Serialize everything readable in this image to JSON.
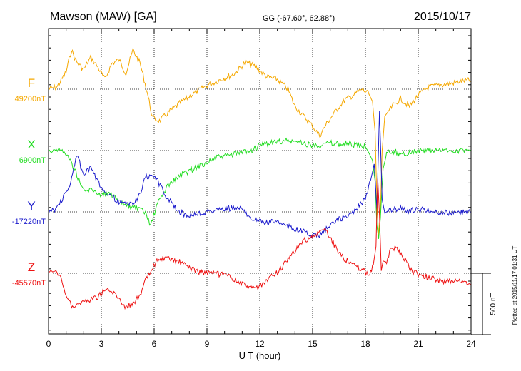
{
  "header": {
    "station": "Mawson (MAW)  [GA]",
    "coords": "GG (-67.60°,  62.88°)",
    "date": "2015/10/17"
  },
  "plotted_note": "Plotted at 2015/11/17 01:31  UT",
  "chart_data": {
    "type": "line",
    "xlabel": "U T (hour)",
    "xlim": [
      0,
      24
    ],
    "x_ticks": [
      "0",
      "3",
      "6",
      "9",
      "12",
      "15",
      "18",
      "21",
      "24"
    ],
    "scale_bar_label": "500 nT",
    "scale_bar_nT": 500,
    "series": [
      {
        "name": "F",
        "baseline_label": "49200nT",
        "baseline_nT": 49200,
        "color": "#f5a800",
        "x": [
          0,
          0.5,
          1,
          1.3,
          1.6,
          2,
          2.4,
          2.8,
          3.2,
          3.6,
          4,
          4.4,
          4.8,
          5.2,
          5.6,
          5.9,
          6.3,
          6.8,
          7.5,
          8.2,
          9,
          9.8,
          10.5,
          11.2,
          11.8,
          12.4,
          13,
          13.6,
          14,
          14.5,
          15,
          15.4,
          15.8,
          16.3,
          16.8,
          17.3,
          17.8,
          18.2,
          18.4,
          18.55,
          18.65,
          18.75,
          18.85,
          18.95,
          19.1,
          19.3,
          19.6,
          20,
          20.5,
          21,
          21.5,
          22,
          22.5,
          23,
          23.5,
          24
        ],
        "values": [
          49200,
          49220,
          49340,
          49520,
          49420,
          49360,
          49460,
          49380,
          49280,
          49410,
          49440,
          49330,
          49520,
          49410,
          49180,
          48970,
          48940,
          49010,
          49090,
          49160,
          49230,
          49280,
          49320,
          49420,
          49380,
          49300,
          49280,
          49200,
          49060,
          48980,
          48900,
          48820,
          48920,
          49020,
          49110,
          49150,
          49200,
          49160,
          49100,
          48850,
          48300,
          48000,
          48200,
          48700,
          48980,
          49020,
          49070,
          49120,
          49060,
          49150,
          49210,
          49230,
          49240,
          49250,
          49270,
          49270
        ]
      },
      {
        "name": "X",
        "baseline_label": "6900nT",
        "baseline_nT": 6900,
        "color": "#22dd22",
        "x": [
          0,
          0.5,
          1,
          1.5,
          2,
          2.5,
          3,
          3.5,
          4,
          4.5,
          5,
          5.5,
          5.8,
          6.2,
          6.8,
          7.5,
          8.5,
          9.5,
          10.5,
          11.5,
          12,
          12.5,
          13,
          13.5,
          14,
          14.5,
          15,
          15.5,
          16,
          16.5,
          17,
          17.5,
          18,
          18.2,
          18.4,
          18.55,
          18.65,
          18.75,
          18.85,
          19,
          19.2,
          19.5,
          20,
          21,
          22,
          23,
          24
        ],
        "values": [
          6900,
          6910,
          6880,
          6740,
          6570,
          6580,
          6540,
          6560,
          6480,
          6450,
          6430,
          6390,
          6290,
          6470,
          6620,
          6700,
          6770,
          6840,
          6870,
          6900,
          6940,
          6960,
          6970,
          6980,
          6970,
          6960,
          6940,
          6950,
          6960,
          6950,
          6960,
          6940,
          6930,
          6880,
          6820,
          6650,
          6290,
          6180,
          6350,
          6750,
          6870,
          6900,
          6870,
          6900,
          6900,
          6900,
          6900
        ]
      },
      {
        "name": "Y",
        "baseline_label": "-17220nT",
        "baseline_nT": -17220,
        "color": "#1a1acc",
        "x": [
          0,
          0.4,
          0.8,
          1.2,
          1.6,
          2,
          2.4,
          2.8,
          3.2,
          3.6,
          4,
          4.4,
          4.8,
          5.2,
          5.5,
          5.8,
          6.1,
          6.4,
          6.8,
          7.3,
          7.8,
          8.3,
          9,
          9.7,
          10.4,
          11,
          11.5,
          12,
          12.5,
          13,
          13.5,
          14,
          14.5,
          15,
          15.5,
          16,
          16.5,
          17,
          17.5,
          18,
          18.3,
          18.5,
          18.65,
          18.8,
          18.95,
          19.1,
          19.3,
          19.6,
          20,
          20.5,
          21,
          22,
          23,
          24
        ],
        "values": [
          -17220,
          -17200,
          -17110,
          -17020,
          -16750,
          -16920,
          -16860,
          -16980,
          -17050,
          -17090,
          -17140,
          -17160,
          -17150,
          -17080,
          -16940,
          -16920,
          -16940,
          -17020,
          -17120,
          -17200,
          -17250,
          -17240,
          -17220,
          -17200,
          -17190,
          -17200,
          -17260,
          -17300,
          -17310,
          -17290,
          -17330,
          -17360,
          -17380,
          -17420,
          -17400,
          -17330,
          -17280,
          -17260,
          -17200,
          -17110,
          -16960,
          -16830,
          -17200,
          -16400,
          -17120,
          -17230,
          -17210,
          -17200,
          -17190,
          -17210,
          -17200,
          -17220,
          -17230,
          -17220
        ]
      },
      {
        "name": "Z",
        "baseline_label": "-45570nT",
        "baseline_nT": -45570,
        "color": "#ee1111",
        "x": [
          0,
          0.3,
          0.6,
          1,
          1.3,
          1.6,
          2,
          2.4,
          2.8,
          3.2,
          3.6,
          4,
          4.4,
          4.8,
          5.2,
          5.5,
          5.8,
          6.1,
          6.5,
          7,
          7.5,
          8,
          8.6,
          9.2,
          9.8,
          10.4,
          11,
          11.5,
          12,
          12.5,
          13,
          13.5,
          14,
          14.5,
          15,
          15.4,
          15.7,
          16,
          16.4,
          16.8,
          17.3,
          17.8,
          18.2,
          18.45,
          18.6,
          18.7,
          18.8,
          18.9,
          19,
          19.2,
          19.5,
          19.8,
          20.2,
          20.6,
          21,
          21.5,
          22,
          22.5,
          23,
          23.5,
          24
        ],
        "values": [
          -45570,
          -45560,
          -45580,
          -45740,
          -45840,
          -45820,
          -45800,
          -45780,
          -45760,
          -45700,
          -45720,
          -45770,
          -45850,
          -45810,
          -45760,
          -45630,
          -45560,
          -45480,
          -45450,
          -45460,
          -45480,
          -45520,
          -45560,
          -45570,
          -45580,
          -45610,
          -45660,
          -45690,
          -45680,
          -45620,
          -45560,
          -45480,
          -45390,
          -45300,
          -45280,
          -45230,
          -45210,
          -45280,
          -45380,
          -45450,
          -45500,
          -45540,
          -45580,
          -45500,
          -45350,
          -44800,
          -45100,
          -45550,
          -45470,
          -45480,
          -45350,
          -45380,
          -45450,
          -45550,
          -45580,
          -45600,
          -45620,
          -45640,
          -45630,
          -45640,
          -45660
        ]
      }
    ]
  }
}
